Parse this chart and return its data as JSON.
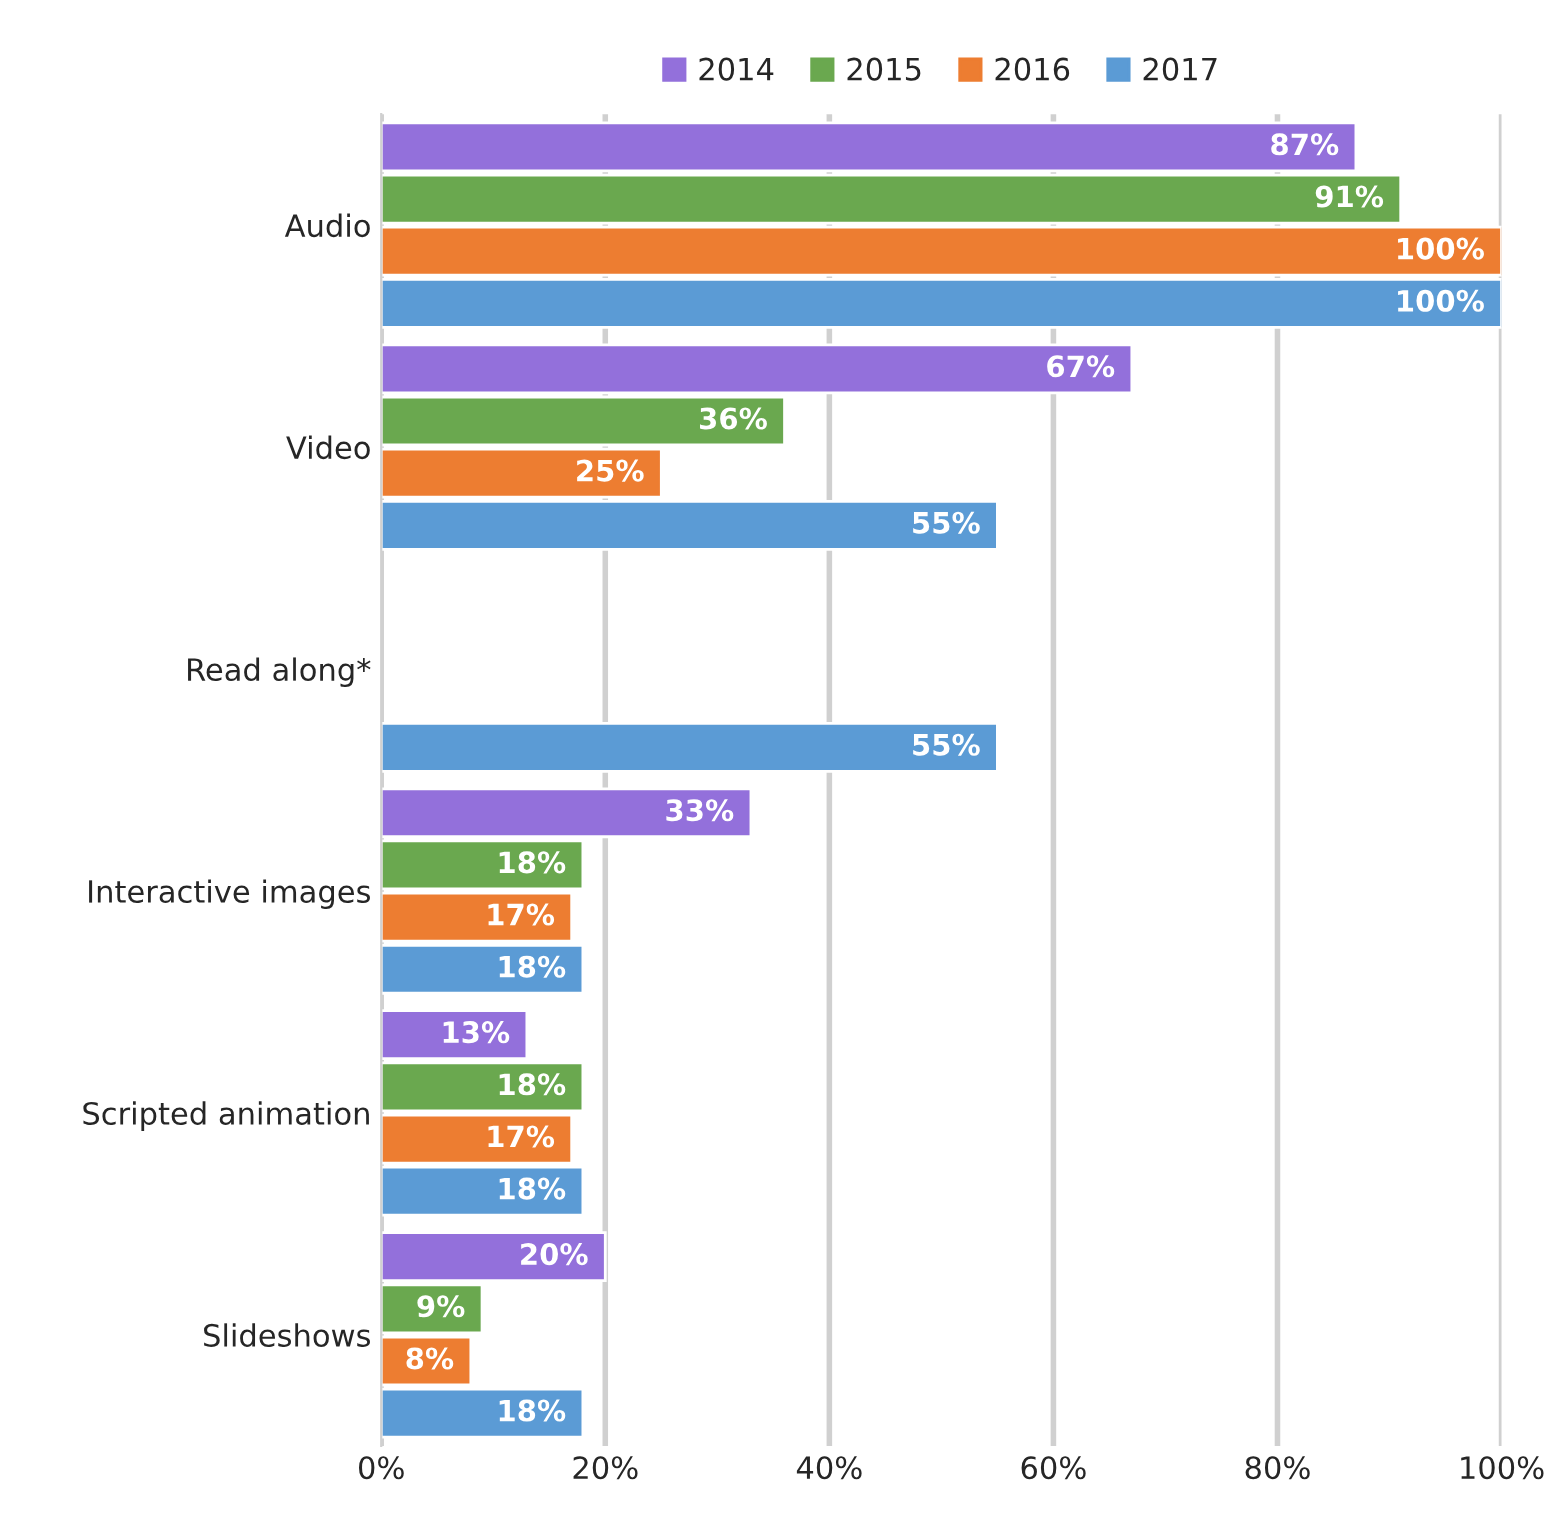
{
  "chart_data": {
    "type": "bar",
    "orientation": "horizontal",
    "categories": [
      "Audio",
      "Video",
      "Read along*",
      "Interactive images",
      "Scripted animation",
      "Slideshows"
    ],
    "series": [
      {
        "name": "2014",
        "color": "#9370db",
        "values": [
          87,
          67,
          null,
          33,
          13,
          20
        ],
        "value_labels": [
          "87%",
          "67%",
          null,
          "33%",
          "13%",
          "20%"
        ]
      },
      {
        "name": "2015",
        "color": "#6aa84f",
        "values": [
          91,
          36,
          null,
          18,
          18,
          9
        ],
        "value_labels": [
          "91%",
          "36%",
          null,
          "18%",
          "18%",
          "9%"
        ]
      },
      {
        "name": "2016",
        "color": "#ed7d31",
        "values": [
          100,
          25,
          null,
          17,
          17,
          8
        ],
        "value_labels": [
          "100%",
          "25%",
          null,
          "17%",
          "17%",
          "8%"
        ]
      },
      {
        "name": "2017",
        "color": "#5b9bd5",
        "values": [
          100,
          55,
          55,
          18,
          18,
          18
        ],
        "value_labels": [
          "100%",
          "55%",
          "55%",
          "18%",
          "18%",
          "18%"
        ]
      }
    ],
    "xlim": [
      0,
      100
    ],
    "xticks": [
      {
        "value": 0,
        "label": "0%"
      },
      {
        "value": 20,
        "label": "20%"
      },
      {
        "value": 40,
        "label": "40%"
      },
      {
        "value": 60,
        "label": "60%"
      },
      {
        "value": 80,
        "label": "80%"
      },
      {
        "value": 100,
        "label": "100%"
      }
    ],
    "grid": "x",
    "legend": "top"
  }
}
